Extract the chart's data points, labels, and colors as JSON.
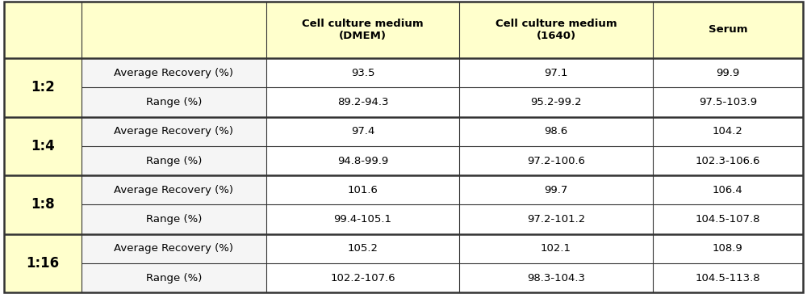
{
  "header": [
    "",
    "",
    "Cell culture medium\n(DMEM)",
    "Cell culture medium\n(1640)",
    "Serum"
  ],
  "header_bg": "#ffffcc",
  "dilution_bg": "#f0f0f0",
  "data_bg": "#f5f5f5",
  "rows": [
    {
      "dilution": "1:2",
      "metric": "Average Recovery (%)",
      "dmem": "93.5",
      "rp1640": "97.1",
      "serum": "99.9"
    },
    {
      "dilution": "1:2",
      "metric": "Range (%)",
      "dmem": "89.2-94.3",
      "rp1640": "95.2-99.2",
      "serum": "97.5-103.9"
    },
    {
      "dilution": "1:4",
      "metric": "Average Recovery (%)",
      "dmem": "97.4",
      "rp1640": "98.6",
      "serum": "104.2"
    },
    {
      "dilution": "1:4",
      "metric": "Range (%)",
      "dmem": "94.8-99.9",
      "rp1640": "97.2-100.6",
      "serum": "102.3-106.6"
    },
    {
      "dilution": "1:8",
      "metric": "Average Recovery (%)",
      "dmem": "101.6",
      "rp1640": "99.7",
      "serum": "106.4"
    },
    {
      "dilution": "1:8",
      "metric": "Range (%)",
      "dmem": "99.4-105.1",
      "rp1640": "97.2-101.2",
      "serum": "104.5-107.8"
    },
    {
      "dilution": "1:16",
      "metric": "Average Recovery (%)",
      "dmem": "105.2",
      "rp1640": "102.1",
      "serum": "108.9"
    },
    {
      "dilution": "1:16",
      "metric": "Range (%)",
      "dmem": "102.2-107.6",
      "rp1640": "98.3-104.3",
      "serum": "104.5-113.8"
    }
  ],
  "groups": [
    {
      "dilution": "1:2",
      "rows": [
        0,
        1
      ]
    },
    {
      "dilution": "1:4",
      "rows": [
        2,
        3
      ]
    },
    {
      "dilution": "1:8",
      "rows": [
        4,
        5
      ]
    },
    {
      "dilution": "1:16",
      "rows": [
        6,
        7
      ]
    }
  ],
  "figsize": [
    10.0,
    3.64
  ],
  "dpi": 100,
  "border_color": "#333333",
  "thick_lw": 1.8,
  "thin_lw": 0.8,
  "header_font_size": 9.5,
  "cell_font_size": 9.5,
  "dilution_font_size": 12
}
